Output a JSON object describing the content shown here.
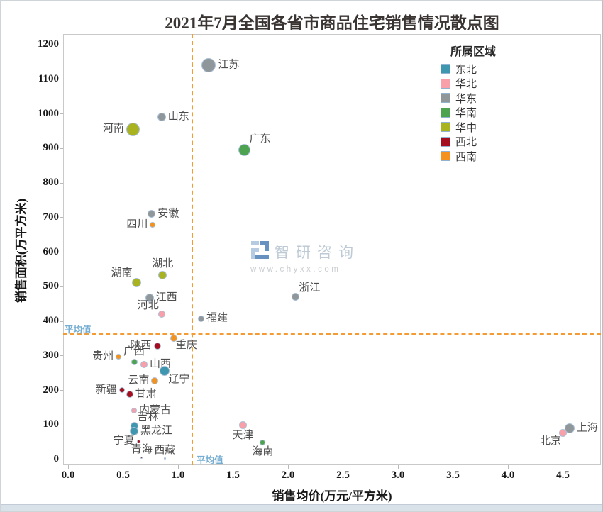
{
  "title": "2021年7月全国各省市商品住宅销售情况散点图",
  "watermark": {
    "brand": "智研咨询",
    "url": "www.chyxx.com"
  },
  "chart_data": {
    "type": "scatter",
    "title": "2021年7月全国各省市商品住宅销售情况散点图",
    "xlabel": "销售均价(万元/平方米)",
    "ylabel": "销售面积(万平方米)",
    "xlim": [
      0,
      4.85
    ],
    "ylim": [
      0,
      1235
    ],
    "grid": false,
    "x_ticks": [
      "0.0",
      "0.5",
      "1.0",
      "1.5",
      "2.0",
      "2.5",
      "3.0",
      "3.5",
      "4.0",
      "4.5"
    ],
    "y_ticks": [
      "0",
      "100",
      "200",
      "300",
      "400",
      "500",
      "600",
      "700",
      "800",
      "900",
      "1000",
      "1100",
      "1200"
    ],
    "legend": {
      "title": "所属区域",
      "position": "top-right",
      "items": [
        {
          "label": "东北",
          "color": "#3F97AF"
        },
        {
          "label": "华北",
          "color": "#F99FA9"
        },
        {
          "label": "华东",
          "color": "#8F979A"
        },
        {
          "label": "华南",
          "color": "#4EA351"
        },
        {
          "label": "华中",
          "color": "#A8B31F"
        },
        {
          "label": "西北",
          "color": "#A50E1E"
        },
        {
          "label": "西南",
          "color": "#F4921D"
        }
      ]
    },
    "average_lines": {
      "x_value": 1.13,
      "y_value": 364,
      "label": "平均值",
      "line_color": "#F59B33",
      "label_color": "#74ADD2"
    },
    "point_style": {
      "edge_color": "#A9BFD6",
      "label_color": "#4D4D4D"
    },
    "points": [
      {
        "name": "江苏",
        "region": "华东",
        "x": 1.28,
        "y": 1140,
        "r": 10,
        "label_pos": "r"
      },
      {
        "name": "山东",
        "region": "华东",
        "x": 0.85,
        "y": 990,
        "r": 6,
        "label_pos": "r"
      },
      {
        "name": "河南",
        "region": "华中",
        "x": 0.59,
        "y": 955,
        "r": 9.5,
        "label_pos": "l"
      },
      {
        "name": "广东",
        "region": "华南",
        "x": 1.6,
        "y": 895,
        "r": 8.5,
        "label_pos": "tr"
      },
      {
        "name": "安徽",
        "region": "华东",
        "x": 0.76,
        "y": 710,
        "r": 5.5,
        "label_pos": "r"
      },
      {
        "name": "四川",
        "region": "西南",
        "x": 0.77,
        "y": 680,
        "r": 4,
        "label_pos": "l"
      },
      {
        "name": "湖北",
        "region": "华中",
        "x": 0.86,
        "y": 533,
        "r": 6,
        "label_pos": "t"
      },
      {
        "name": "湖南",
        "region": "华中",
        "x": 0.62,
        "y": 511,
        "r": 6.5,
        "label_pos": "tl"
      },
      {
        "name": "江西",
        "region": "华东",
        "x": 0.74,
        "y": 468,
        "r": 6,
        "label_pos": "r"
      },
      {
        "name": "河北",
        "region": "华北",
        "x": 0.85,
        "y": 420,
        "r": 5,
        "label_pos": "tl"
      },
      {
        "name": "福建",
        "region": "华东",
        "x": 1.21,
        "y": 408,
        "r": 4.5,
        "label_pos": "r"
      },
      {
        "name": "浙江",
        "region": "华东",
        "x": 2.07,
        "y": 470,
        "r": 5.5,
        "label_pos": "tr"
      },
      {
        "name": "重庆",
        "region": "西南",
        "x": 0.96,
        "y": 351,
        "r": 5,
        "label_pos": "br"
      },
      {
        "name": "陕西",
        "region": "西北",
        "x": 0.81,
        "y": 328,
        "r": 5,
        "label_pos": "l"
      },
      {
        "name": "贵州",
        "region": "西南",
        "x": 0.46,
        "y": 297,
        "r": 4,
        "label_pos": "l"
      },
      {
        "name": "广西",
        "region": "华南",
        "x": 0.6,
        "y": 283,
        "r": 4.5,
        "label_pos": "t"
      },
      {
        "name": "山西",
        "region": "华北",
        "x": 0.69,
        "y": 275,
        "r": 5,
        "label_pos": "r"
      },
      {
        "name": "辽宁",
        "region": "东北",
        "x": 0.88,
        "y": 256,
        "r": 7,
        "label_pos": "br"
      },
      {
        "name": "云南",
        "region": "西南",
        "x": 0.79,
        "y": 228,
        "r": 5,
        "label_pos": "l"
      },
      {
        "name": "新疆",
        "region": "西北",
        "x": 0.49,
        "y": 201,
        "r": 4,
        "label_pos": "l"
      },
      {
        "name": "甘肃",
        "region": "西北",
        "x": 0.56,
        "y": 189,
        "r": 5,
        "label_pos": "r"
      },
      {
        "name": "内蒙古",
        "region": "华北",
        "x": 0.6,
        "y": 142,
        "r": 4,
        "label_pos": "r"
      },
      {
        "name": "吉林",
        "region": "东北",
        "x": 0.6,
        "y": 98,
        "r": 5.5,
        "label_pos": "tr"
      },
      {
        "name": "黑龙江",
        "region": "东北",
        "x": 0.6,
        "y": 82,
        "r": 6,
        "label_pos": "r"
      },
      {
        "name": "宁夏",
        "region": "西北",
        "x": 0.64,
        "y": 53,
        "r": 2.5,
        "label_pos": "l"
      },
      {
        "name": "青海",
        "region": "西北",
        "x": 0.67,
        "y": 6,
        "r": 1.5,
        "label_pos": "t"
      },
      {
        "name": "西藏",
        "region": "西南",
        "x": 0.88,
        "y": 4,
        "r": 1.5,
        "label_pos": "t"
      },
      {
        "name": "天津",
        "region": "华北",
        "x": 1.59,
        "y": 100,
        "r": 5.5,
        "label_pos": "b"
      },
      {
        "name": "海南",
        "region": "华南",
        "x": 1.77,
        "y": 50,
        "r": 4,
        "label_pos": "b"
      },
      {
        "name": "上海",
        "region": "华东",
        "x": 4.56,
        "y": 90,
        "r": 7,
        "label_pos": "r"
      },
      {
        "name": "北京",
        "region": "华北",
        "x": 4.5,
        "y": 76,
        "r": 5.5,
        "label_pos": "bl"
      }
    ]
  }
}
